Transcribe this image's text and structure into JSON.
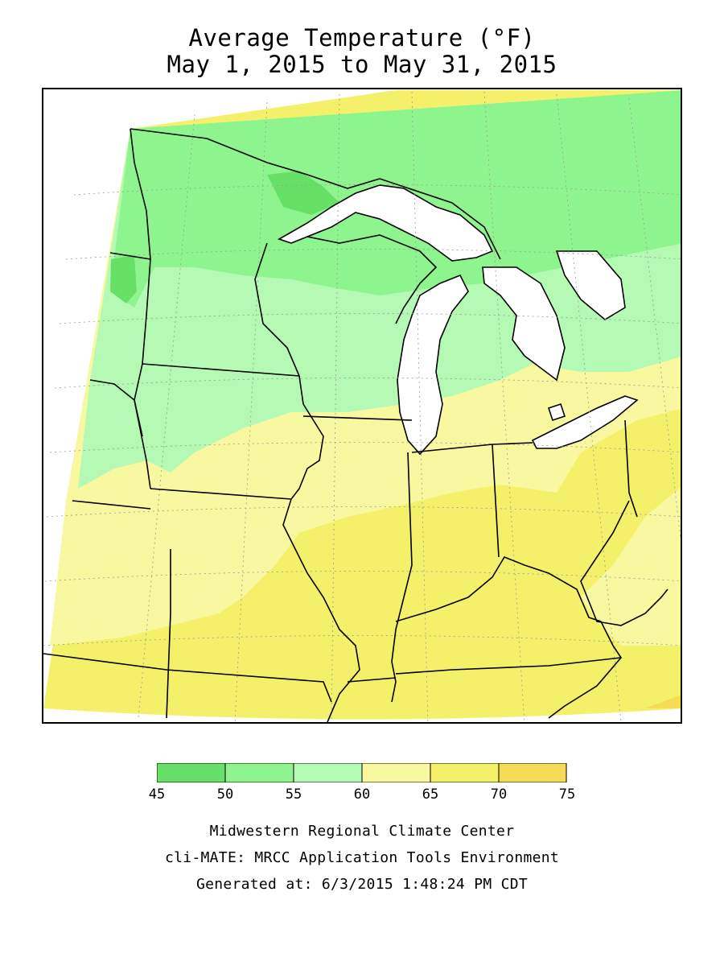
{
  "title": {
    "line1": "Average Temperature (°F)",
    "line2": "May 1, 2015 to May 31, 2015"
  },
  "legend": {
    "bins": [
      {
        "from": 45,
        "to": 50,
        "color": "#66e066"
      },
      {
        "from": 50,
        "to": 55,
        "color": "#8ef58e"
      },
      {
        "from": 55,
        "to": 60,
        "color": "#b4fab4"
      },
      {
        "from": 60,
        "to": 65,
        "color": "#f8f8a0"
      },
      {
        "from": 65,
        "to": 70,
        "color": "#f5f06a"
      },
      {
        "from": 70,
        "to": 75,
        "color": "#f5dc55"
      }
    ],
    "tick_labels": [
      "45",
      "50",
      "55",
      "60",
      "65",
      "70",
      "75"
    ]
  },
  "credits": {
    "line1": "Midwestern Regional Climate Center",
    "line2": "cli-MATE: MRCC Application Tools Environment",
    "line3": "Generated at: 6/3/2015 1:48:24 PM CDT"
  },
  "colors": {
    "lake_fill": "#ffffff",
    "outline": "#000000",
    "graticule": "#9a9a9a"
  }
}
